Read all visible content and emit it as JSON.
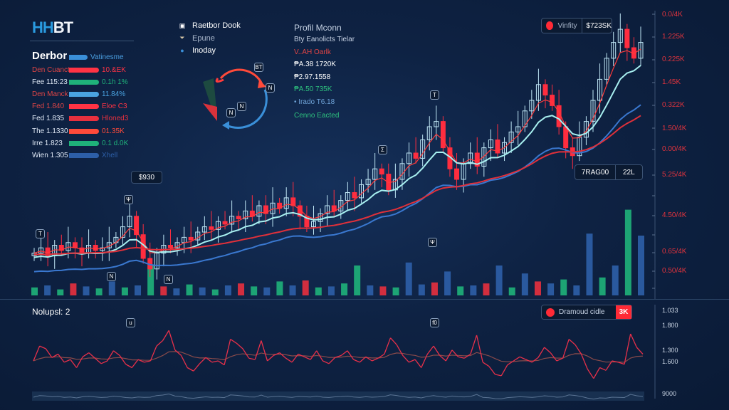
{
  "logo": {
    "part1": "HH",
    "part2": "BT"
  },
  "panel": {
    "title": "Derbor",
    "title_bar_label": "Vatinesme",
    "rows": [
      {
        "label": "Den Cuanct",
        "value": "10.&EK",
        "color": "#ff3344",
        "label_color": "#e04545"
      },
      {
        "label": "Fee 115:23",
        "value": "0.1h 1%",
        "color": "#1fb27a",
        "label_color": "#dfe8f5"
      },
      {
        "label": "Den Manck",
        "value": "11.84%",
        "color": "#4aa3e0",
        "label_color": "#e04545"
      },
      {
        "label": "Fed 1.840",
        "value": "Eloe C3",
        "color": "#ff3344",
        "label_color": "#e04545"
      },
      {
        "label": "Fed 1.835",
        "value": "Hloned3",
        "color": "#e8303e",
        "label_color": "#dfe8f5"
      },
      {
        "label": "The 1.1330",
        "value": "01.35K",
        "color": "#ff4a3a",
        "label_color": "#dfe8f5"
      },
      {
        "label": "Irre 1.823",
        "value": "0.1 d.0K",
        "color": "#1fb27a",
        "label_color": "#dfe8f5"
      },
      {
        "label": "Wien 1.305",
        "value": "Xhell",
        "color": "#2d5fa8",
        "label_color": "#dfe8f5"
      }
    ]
  },
  "legend": [
    {
      "label": "Raetbor Dook",
      "icon": "book-icon"
    },
    {
      "label": "Epune",
      "icon": "funnel-icon"
    },
    {
      "label": "Inoday",
      "icon": "globe-icon"
    }
  ],
  "cycle_markers": [
    "BT",
    "N",
    "N",
    "N"
  ],
  "info": [
    {
      "text": "Profil Mconn",
      "color": "#c6d2e4"
    },
    {
      "text": "Bty Eanolicts Tielar",
      "color": "#c6d2e4"
    },
    {
      "text": "V..AH Oarlk",
      "color": "#e04545"
    },
    {
      "text": "₱A.38 1720K",
      "color": "#ffffff"
    },
    {
      "text": "₱2.97.1558",
      "color": "#ffffff"
    },
    {
      "text": "₱A.50 735K",
      "color": "#2ec27e"
    },
    {
      "text": "• Irado T6.18",
      "color": "#6fa3d8"
    },
    {
      "text": "Cenno Eacted",
      "color": "#2ec27e"
    }
  ],
  "tags": {
    "top_label": "Vinfity",
    "top_value": "$723SK",
    "price_tag": "$930",
    "mid_label": "7RAG00",
    "mid_value": "22L"
  },
  "chart_markers": [
    "T",
    "Σ",
    "Ψ",
    "Ψ",
    "T",
    "N",
    "N"
  ],
  "colors": {
    "up": "#bfe6f5",
    "down": "#ff2d3f",
    "ma_fast": "#ff3b3b",
    "ma_mid": "#a8f0f0",
    "ma_slow": "#3a78d0",
    "ma_long": "#e0303a",
    "accent": "#ff2a36"
  },
  "price_axis": [
    "0.0/4K",
    "1.225K",
    "0.225K",
    "1.45K",
    "0.322K",
    "1.50/4K",
    "0.00/4K",
    "5.25/4K",
    "4.50/4K",
    "0.65/4K",
    "0.50/4K"
  ],
  "lower": {
    "title": "Nolupsl: 2",
    "tag_label": "Dramoud cidle",
    "tag_value": "3K",
    "axis": [
      "1.033",
      "1.800",
      "1.300",
      "1.600",
      "9000"
    ],
    "markers": [
      "u",
      "f0"
    ]
  },
  "chart_data": [
    {
      "type": "candlestick",
      "ylim": [
        0,
        100
      ],
      "closes": [
        12,
        14,
        11,
        15,
        13,
        16,
        14,
        12,
        15,
        13,
        14,
        16,
        18,
        22,
        26,
        19,
        10,
        6,
        12,
        15,
        14,
        16,
        18,
        17,
        20,
        22,
        21,
        24,
        23,
        26,
        25,
        28,
        26,
        30,
        27,
        31,
        29,
        33,
        30,
        26,
        22,
        24,
        27,
        30,
        28,
        32,
        35,
        33,
        38,
        40,
        44,
        42,
        36,
        40,
        46,
        50,
        48,
        55,
        60,
        62,
        52,
        44,
        40,
        46,
        50,
        45,
        52,
        55,
        50,
        54,
        58,
        60,
        66,
        70,
        76,
        72,
        68,
        60,
        52,
        49,
        56,
        62,
        70,
        78,
        86,
        92,
        97,
        90,
        86,
        92
      ],
      "moving_average_periods": [
        4,
        8,
        18,
        35
      ]
    },
    {
      "type": "bar",
      "name": "volume",
      "ylim": [
        0,
        100
      ],
      "values": [
        8,
        10,
        6,
        12,
        9,
        7,
        14,
        8,
        10,
        30,
        9,
        7,
        11,
        8,
        6,
        10,
        12,
        9,
        8,
        14,
        10,
        15,
        8,
        9,
        12,
        30,
        10,
        9,
        8,
        33,
        11,
        13,
        24,
        9,
        10,
        12,
        30,
        8,
        22,
        14,
        12,
        16,
        10,
        62,
        18,
        30,
        86,
        60
      ],
      "colors": [
        "g",
        "b",
        "g",
        "r",
        "b",
        "g",
        "b",
        "g",
        "b",
        "g",
        "r",
        "b",
        "g",
        "b",
        "g",
        "b",
        "r",
        "g",
        "b",
        "g",
        "b",
        "r",
        "g",
        "b",
        "g",
        "g",
        "b",
        "r",
        "g",
        "b",
        "b",
        "r",
        "b",
        "g",
        "b",
        "r",
        "b",
        "g",
        "b",
        "r",
        "b",
        "g",
        "b",
        "b",
        "g",
        "b",
        "g",
        "b"
      ]
    },
    {
      "type": "line",
      "name": "oscillator",
      "ylim": [
        0,
        100
      ],
      "values": [
        40,
        62,
        58,
        45,
        50,
        38,
        42,
        30,
        46,
        52,
        44,
        36,
        40,
        55,
        48,
        35,
        30,
        42,
        38,
        40,
        62,
        70,
        85,
        56,
        48,
        30,
        25,
        36,
        45,
        38,
        40,
        34,
        72,
        66,
        58,
        44,
        42,
        70,
        40,
        48,
        52,
        44,
        38,
        50,
        46,
        42,
        55,
        40,
        36,
        45,
        48,
        55,
        42,
        38,
        46,
        40,
        44,
        50,
        74,
        64,
        48,
        38,
        42,
        30,
        50,
        62,
        48,
        40,
        56,
        46,
        44,
        50,
        78,
        38,
        32,
        20,
        18,
        34,
        40,
        46,
        42,
        38,
        45,
        60,
        52,
        40,
        44,
        72,
        64,
        50,
        28,
        14,
        30,
        26,
        40,
        38,
        35,
        80,
        60,
        50
      ]
    }
  ]
}
